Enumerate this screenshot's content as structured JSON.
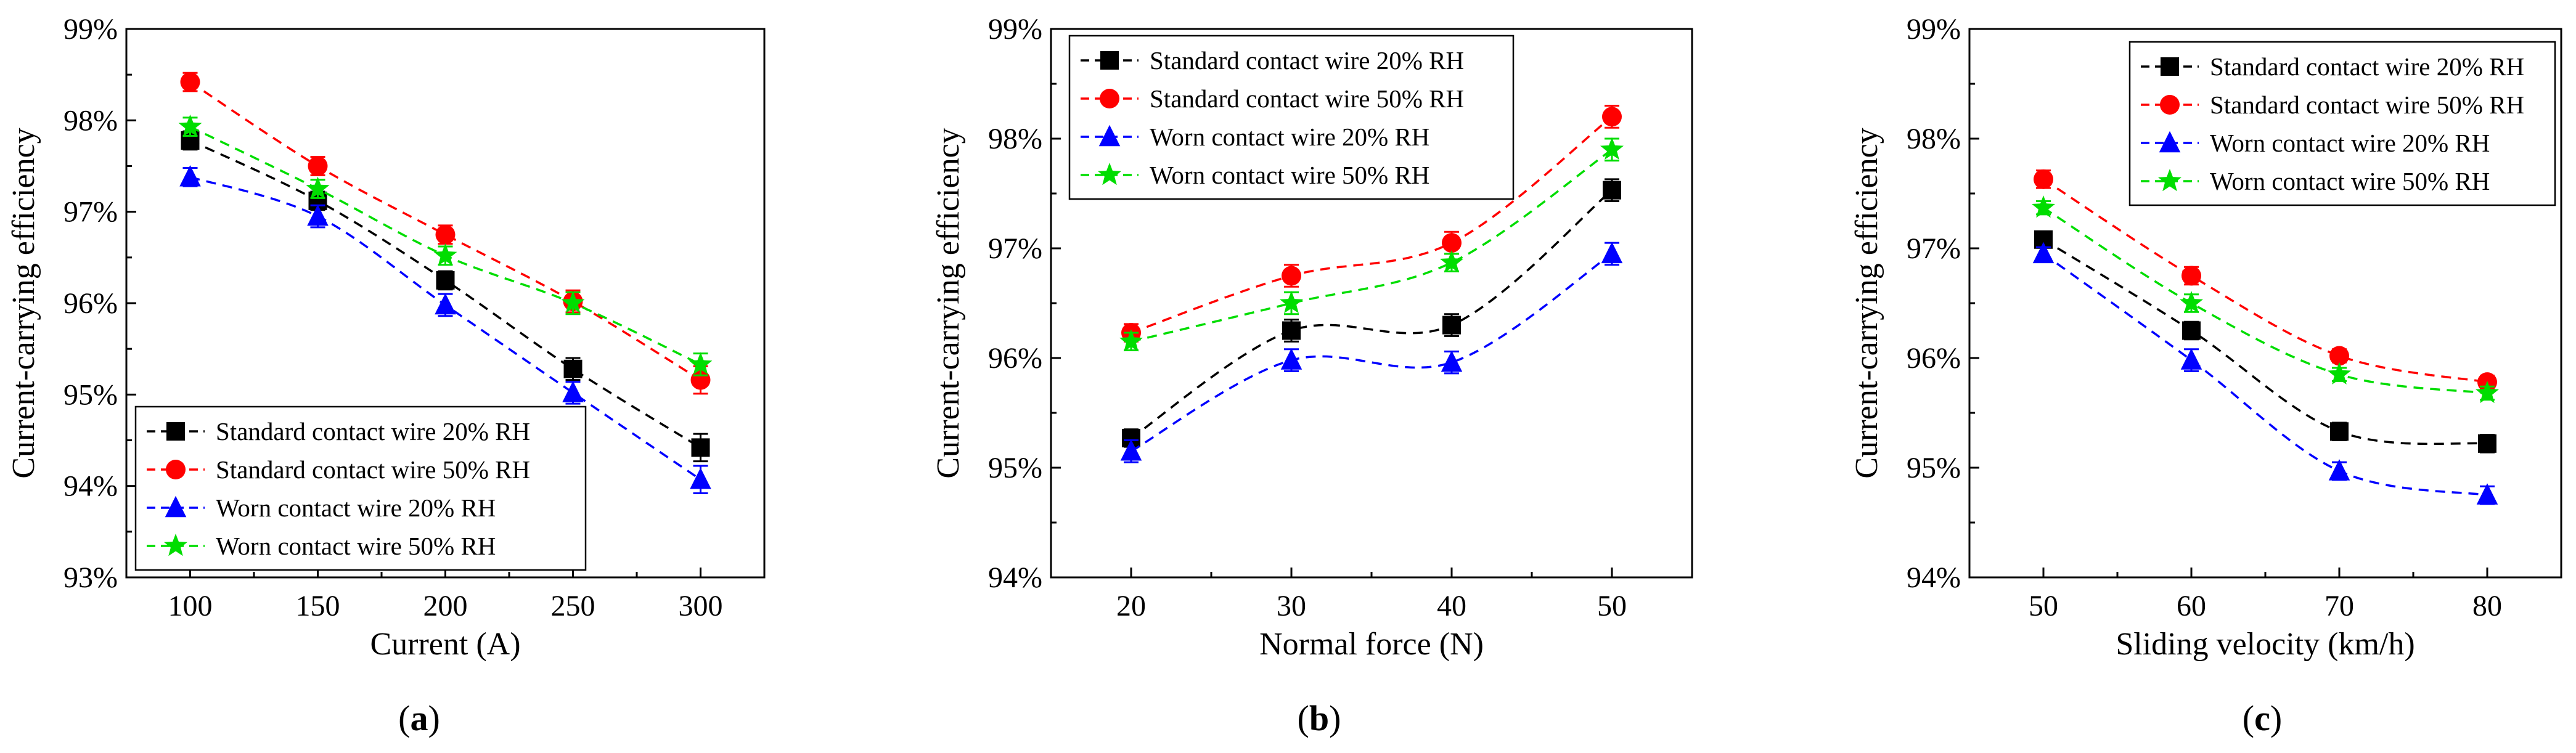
{
  "chart_data": [
    {
      "type": "line",
      "caption": "a",
      "xlabel": "Current (A)",
      "ylabel": "Current-carrying efficiency",
      "x": [
        100,
        150,
        200,
        250,
        300
      ],
      "xticks": [
        100,
        150,
        200,
        250,
        300
      ],
      "xlim": [
        75,
        325
      ],
      "ylim": [
        93,
        99
      ],
      "yticks": [
        "93%",
        "94%",
        "95%",
        "96%",
        "97%",
        "98%",
        "99%"
      ],
      "legend_position": "bottom-left",
      "series": [
        {
          "name": "Standard contact wire 20% RH",
          "color": "#000000",
          "marker": "square",
          "values": [
            97.78,
            97.12,
            96.25,
            95.28,
            94.42
          ],
          "errors": [
            0.1,
            0.1,
            0.1,
            0.12,
            0.15
          ]
        },
        {
          "name": "Standard contact wire 50% RH",
          "color": "#ff0000",
          "marker": "circle",
          "values": [
            98.42,
            97.5,
            96.75,
            96.02,
            95.16
          ],
          "errors": [
            0.1,
            0.1,
            0.1,
            0.12,
            0.15
          ]
        },
        {
          "name": "Worn contact wire 20% RH",
          "color": "#0000ff",
          "marker": "triangle",
          "values": [
            97.38,
            96.95,
            95.98,
            95.02,
            94.07
          ],
          "errors": [
            0.1,
            0.12,
            0.12,
            0.12,
            0.15
          ]
        },
        {
          "name": "Worn contact wire 50% RH",
          "color": "#00dd00",
          "marker": "star",
          "values": [
            97.93,
            97.25,
            96.52,
            96.0,
            95.33
          ],
          "errors": [
            0.1,
            0.1,
            0.1,
            0.12,
            0.12
          ]
        }
      ]
    },
    {
      "type": "line",
      "caption": "b",
      "xlabel": "Normal force (N)",
      "ylabel": "Current-carrying efficiency",
      "x": [
        20,
        30,
        40,
        50
      ],
      "xticks": [
        20,
        30,
        40,
        50
      ],
      "xlim": [
        15,
        55
      ],
      "ylim": [
        94,
        99
      ],
      "yticks": [
        "94%",
        "95%",
        "96%",
        "97%",
        "98%",
        "99%"
      ],
      "legend_position": "top-left",
      "series": [
        {
          "name": "Standard contact wire 20% RH",
          "color": "#000000",
          "marker": "square",
          "values": [
            95.27,
            96.25,
            96.3,
            97.53
          ],
          "errors": [
            0.08,
            0.1,
            0.1,
            0.1
          ]
        },
        {
          "name": "Standard contact wire 50% RH",
          "color": "#ff0000",
          "marker": "circle",
          "values": [
            96.23,
            96.75,
            97.05,
            98.2
          ],
          "errors": [
            0.08,
            0.1,
            0.1,
            0.1
          ]
        },
        {
          "name": "Worn contact wire 20% RH",
          "color": "#0000ff",
          "marker": "triangle",
          "values": [
            95.15,
            95.98,
            95.96,
            96.95
          ],
          "errors": [
            0.1,
            0.1,
            0.1,
            0.1
          ]
        },
        {
          "name": "Worn contact wire 50% RH",
          "color": "#00dd00",
          "marker": "star",
          "values": [
            96.15,
            96.5,
            96.87,
            97.9
          ],
          "errors": [
            0.08,
            0.1,
            0.08,
            0.1
          ]
        }
      ]
    },
    {
      "type": "line",
      "caption": "c",
      "xlabel": "Sliding velocity (km/h)",
      "ylabel": "Current-carrying efficiency",
      "x": [
        50,
        60,
        70,
        80
      ],
      "xticks": [
        50,
        60,
        70,
        80
      ],
      "xlim": [
        45,
        85
      ],
      "ylim": [
        94,
        99
      ],
      "yticks": [
        "94%",
        "95%",
        "96%",
        "97%",
        "98%",
        "99%"
      ],
      "legend_position": "top-right",
      "series": [
        {
          "name": "Standard contact wire 20% RH",
          "color": "#000000",
          "marker": "square",
          "values": [
            97.08,
            96.25,
            95.33,
            95.22
          ],
          "errors": [
            0.06,
            0.08,
            0.08,
            0.08
          ]
        },
        {
          "name": "Standard contact wire 50% RH",
          "color": "#ff0000",
          "marker": "circle",
          "values": [
            97.63,
            96.75,
            96.02,
            95.78
          ],
          "errors": [
            0.08,
            0.08,
            0.06,
            0.06
          ]
        },
        {
          "name": "Worn contact wire 20% RH",
          "color": "#0000ff",
          "marker": "triangle",
          "values": [
            96.95,
            95.98,
            94.97,
            94.75
          ],
          "errors": [
            0.06,
            0.1,
            0.08,
            0.08
          ]
        },
        {
          "name": "Worn contact wire 50% RH",
          "color": "#00dd00",
          "marker": "star",
          "values": [
            97.37,
            96.5,
            95.85,
            95.68
          ],
          "errors": [
            0.06,
            0.08,
            0.06,
            0.06
          ]
        }
      ]
    }
  ]
}
